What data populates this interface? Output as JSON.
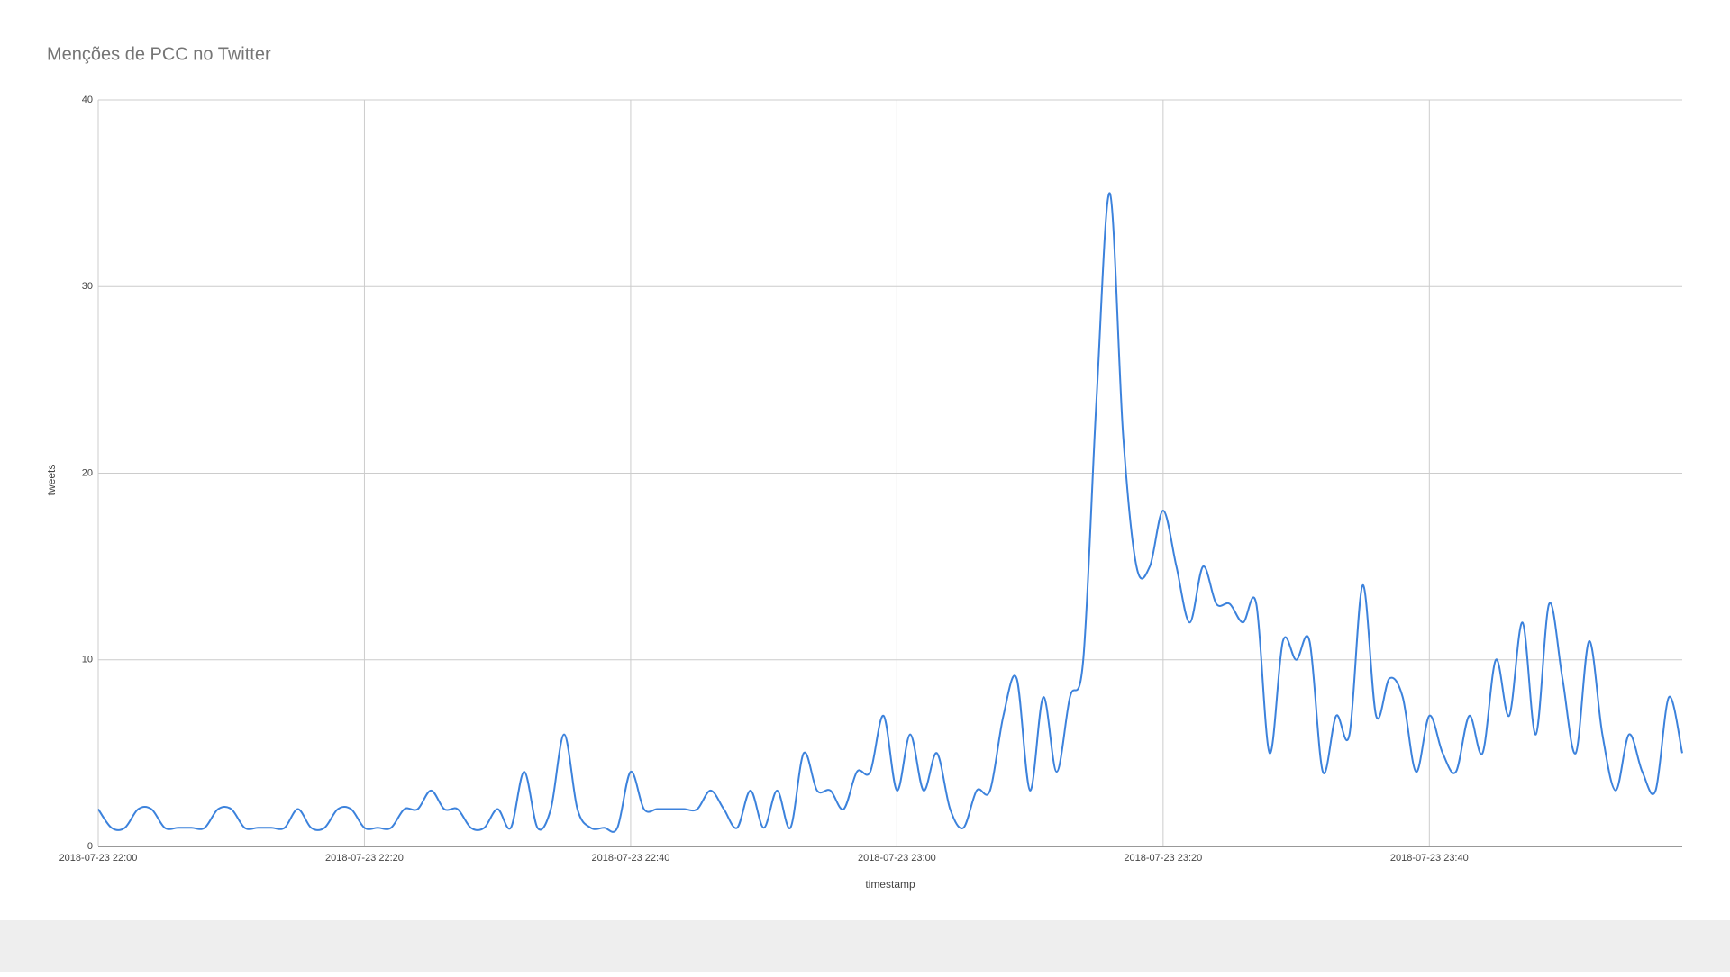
{
  "chart_data": {
    "type": "line",
    "title": "Menções de PCC no Twitter",
    "xlabel": "timestamp",
    "ylabel": "tweets",
    "x": [
      "2018-07-23 22:00",
      "2018-07-23 22:01",
      "2018-07-23 22:02",
      "2018-07-23 22:03",
      "2018-07-23 22:04",
      "2018-07-23 22:05",
      "2018-07-23 22:06",
      "2018-07-23 22:07",
      "2018-07-23 22:08",
      "2018-07-23 22:09",
      "2018-07-23 22:10",
      "2018-07-23 22:11",
      "2018-07-23 22:12",
      "2018-07-23 22:13",
      "2018-07-23 22:14",
      "2018-07-23 22:15",
      "2018-07-23 22:16",
      "2018-07-23 22:17",
      "2018-07-23 22:18",
      "2018-07-23 22:19",
      "2018-07-23 22:20",
      "2018-07-23 22:21",
      "2018-07-23 22:22",
      "2018-07-23 22:23",
      "2018-07-23 22:24",
      "2018-07-23 22:25",
      "2018-07-23 22:26",
      "2018-07-23 22:27",
      "2018-07-23 22:28",
      "2018-07-23 22:29",
      "2018-07-23 22:30",
      "2018-07-23 22:31",
      "2018-07-23 22:32",
      "2018-07-23 22:33",
      "2018-07-23 22:34",
      "2018-07-23 22:35",
      "2018-07-23 22:36",
      "2018-07-23 22:37",
      "2018-07-23 22:38",
      "2018-07-23 22:39",
      "2018-07-23 22:40",
      "2018-07-23 22:41",
      "2018-07-23 22:42",
      "2018-07-23 22:43",
      "2018-07-23 22:44",
      "2018-07-23 22:45",
      "2018-07-23 22:46",
      "2018-07-23 22:47",
      "2018-07-23 22:48",
      "2018-07-23 22:49",
      "2018-07-23 22:50",
      "2018-07-23 22:51",
      "2018-07-23 22:52",
      "2018-07-23 22:53",
      "2018-07-23 22:54",
      "2018-07-23 22:55",
      "2018-07-23 22:56",
      "2018-07-23 22:57",
      "2018-07-23 22:58",
      "2018-07-23 22:59",
      "2018-07-23 23:00",
      "2018-07-23 23:01",
      "2018-07-23 23:02",
      "2018-07-23 23:03",
      "2018-07-23 23:04",
      "2018-07-23 23:05",
      "2018-07-23 23:06",
      "2018-07-23 23:07",
      "2018-07-23 23:08",
      "2018-07-23 23:09",
      "2018-07-23 23:10",
      "2018-07-23 23:11",
      "2018-07-23 23:12",
      "2018-07-23 23:13",
      "2018-07-23 23:14",
      "2018-07-23 23:15",
      "2018-07-23 23:16",
      "2018-07-23 23:17",
      "2018-07-23 23:18",
      "2018-07-23 23:19",
      "2018-07-23 23:20",
      "2018-07-23 23:21",
      "2018-07-23 23:22",
      "2018-07-23 23:23",
      "2018-07-23 23:24",
      "2018-07-23 23:25",
      "2018-07-23 23:26",
      "2018-07-23 23:27",
      "2018-07-23 23:28",
      "2018-07-23 23:29",
      "2018-07-23 23:30",
      "2018-07-23 23:31",
      "2018-07-23 23:32",
      "2018-07-23 23:33",
      "2018-07-23 23:34",
      "2018-07-23 23:35",
      "2018-07-23 23:36",
      "2018-07-23 23:37",
      "2018-07-23 23:38",
      "2018-07-23 23:39",
      "2018-07-23 23:40",
      "2018-07-23 23:41",
      "2018-07-23 23:42",
      "2018-07-23 23:43",
      "2018-07-23 23:44",
      "2018-07-23 23:45",
      "2018-07-23 23:46",
      "2018-07-23 23:47",
      "2018-07-23 23:48",
      "2018-07-23 23:49",
      "2018-07-23 23:50",
      "2018-07-23 23:51",
      "2018-07-23 23:52",
      "2018-07-23 23:53",
      "2018-07-23 23:54",
      "2018-07-23 23:55",
      "2018-07-23 23:56",
      "2018-07-23 23:57",
      "2018-07-23 23:58",
      "2018-07-23 23:59"
    ],
    "series": [
      {
        "name": "tweets",
        "color": "#3c82dc",
        "values": [
          2,
          1,
          1,
          2,
          2,
          1,
          1,
          1,
          1,
          2,
          2,
          1,
          1,
          1,
          1,
          2,
          1,
          1,
          2,
          2,
          1,
          1,
          1,
          2,
          2,
          3,
          2,
          2,
          1,
          1,
          2,
          1,
          4,
          1,
          2,
          6,
          2,
          1,
          1,
          1,
          4,
          2,
          2,
          2,
          2,
          2,
          3,
          2,
          1,
          3,
          1,
          3,
          1,
          5,
          3,
          3,
          2,
          4,
          4,
          7,
          3,
          6,
          3,
          5,
          2,
          1,
          3,
          3,
          7,
          9,
          3,
          8,
          4,
          8,
          10,
          24,
          35,
          22,
          15,
          15,
          18,
          15,
          12,
          15,
          13,
          13,
          12,
          13,
          5,
          11,
          10,
          11,
          4,
          7,
          6,
          14,
          7,
          9,
          8,
          4,
          7,
          5,
          4,
          7,
          5,
          10,
          7,
          12,
          6,
          13,
          9,
          5,
          11,
          6,
          3,
          6,
          4,
          3,
          8,
          5
        ]
      }
    ],
    "xlim": [
      "2018-07-23 22:00",
      "2018-07-23 23:59"
    ],
    "xticks": [
      "2018-07-23 22:00",
      "2018-07-23 22:20",
      "2018-07-23 22:40",
      "2018-07-23 23:00",
      "2018-07-23 23:20",
      "2018-07-23 23:40"
    ],
    "ylim": [
      0,
      40
    ],
    "yticks": [
      0,
      10,
      20,
      30,
      40
    ],
    "grid": true
  }
}
